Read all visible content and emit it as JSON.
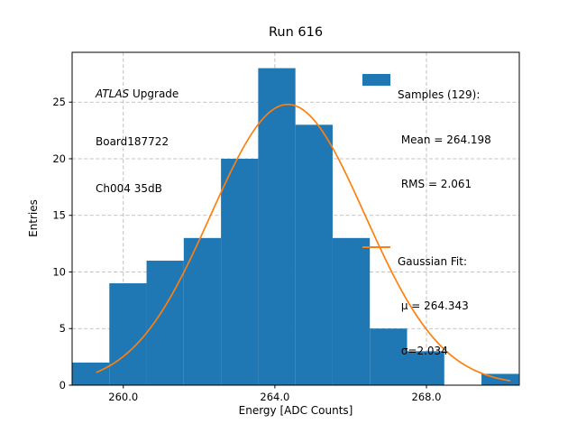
{
  "chart_data": {
    "type": "histogram",
    "title": "Run 616",
    "xlabel": "Energy [ADC Counts]",
    "ylabel": "Entries",
    "x_range": [
      258.65,
      270.45
    ],
    "y_range": [
      0,
      29.4
    ],
    "grid": true,
    "grid_color": "#b0b0b0",
    "xticks": [
      {
        "value": 260.0,
        "label": "260.0"
      },
      {
        "value": 264.0,
        "label": "264.0"
      },
      {
        "value": 268.0,
        "label": "268.0"
      }
    ],
    "yticks": [
      {
        "value": 0,
        "label": "0"
      },
      {
        "value": 5,
        "label": "5"
      },
      {
        "value": 10,
        "label": "10"
      },
      {
        "value": 15,
        "label": "15"
      },
      {
        "value": 20,
        "label": "20"
      },
      {
        "value": 25,
        "label": "25"
      }
    ],
    "histogram": {
      "series_name": "Samples",
      "n_samples": 129,
      "mean": 264.198,
      "rms": 2.061,
      "bin_start": 258.65,
      "bin_width": 0.982,
      "counts": [
        2,
        9,
        11,
        13,
        20,
        28,
        23,
        13,
        5,
        3,
        0,
        1
      ],
      "color": "#1f77b4"
    },
    "gaussian_fit": {
      "mu": 264.343,
      "sigma": 2.034,
      "amplitude": 24.8,
      "x_min": 259.3,
      "x_max": 270.2,
      "color": "#ff7f0e"
    },
    "legend_position": "upper right"
  },
  "annotation": {
    "line1_italic": "ATLAS",
    "line1_rest": " Upgrade",
    "line2": "Board187722",
    "line3": "Ch004 35dB"
  },
  "legend": {
    "samples_lines": [
      "Samples (129):",
      " Mean = 264.198",
      " RMS = 2.061"
    ],
    "fit_lines": [
      "Gaussian Fit:",
      " μ = 264.343",
      " σ=2.034"
    ]
  }
}
